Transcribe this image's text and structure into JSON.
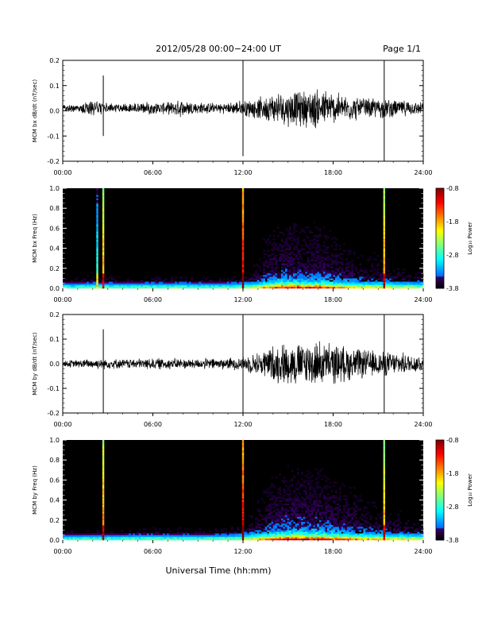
{
  "header": {
    "title": "2012/05/28  00:00−24:00 UT",
    "page": "Page 1/1"
  },
  "x_axis_title": "Universal Time (hh:mm)",
  "x_ticks": [
    "00:00",
    "06:00",
    "12:00",
    "18:00",
    "24:00"
  ],
  "colorbar": {
    "label": "Log₁₀ Power",
    "ticks": [
      "-0.8",
      "-1.8",
      "-2.8",
      "-3.8"
    ],
    "range": [
      -3.8,
      -0.8
    ]
  },
  "chart_data": [
    {
      "type": "line",
      "ylabel": "MCM bx dB/dt (nT/sec)",
      "xlim": [
        0,
        24
      ],
      "ylim": [
        -0.2,
        0.2
      ],
      "yticks": [
        "0.2",
        "0.1",
        "0.0",
        "-0.1",
        "-0.2"
      ],
      "envelope": {
        "hours": [
          0,
          1,
          2,
          3,
          4,
          5,
          6,
          7,
          8,
          9,
          10,
          11,
          12,
          13,
          14,
          15,
          16,
          17,
          18,
          19,
          20,
          21,
          22,
          23,
          24
        ],
        "amplitude": [
          0.012,
          0.014,
          0.03,
          0.02,
          0.016,
          0.02,
          0.02,
          0.02,
          0.03,
          0.02,
          0.018,
          0.018,
          0.028,
          0.035,
          0.05,
          0.06,
          0.06,
          0.07,
          0.055,
          0.045,
          0.035,
          0.035,
          0.03,
          0.025,
          0.02
        ],
        "baseline": 0.01
      },
      "spikes": [
        {
          "hour": 2.7,
          "min": -0.1,
          "max": 0.14
        },
        {
          "hour": 12.0,
          "min": -0.18,
          "max": 0.22
        },
        {
          "hour": 21.4,
          "min": -0.2,
          "max": 0.22
        }
      ]
    },
    {
      "type": "heatmap",
      "ylabel": "MCM bx Freq (Hz)",
      "xlim": [
        0,
        24
      ],
      "ylim": [
        0,
        1.0
      ],
      "yticks": [
        "1.0",
        "0.8",
        "0.6",
        "0.4",
        "0.2",
        "0.0"
      ],
      "log_power_range": [
        -3.8,
        -0.8
      ],
      "activity": {
        "hours": [
          0,
          1,
          2,
          3,
          4,
          5,
          6,
          7,
          8,
          9,
          10,
          11,
          12,
          13,
          14,
          15,
          16,
          17,
          18,
          19,
          20,
          21,
          22,
          23,
          24
        ],
        "level": [
          0.05,
          0.05,
          0.1,
          0.08,
          0.06,
          0.08,
          0.08,
          0.08,
          0.1,
          0.08,
          0.07,
          0.08,
          0.15,
          0.3,
          0.55,
          0.65,
          0.6,
          0.6,
          0.5,
          0.4,
          0.3,
          0.3,
          0.25,
          0.2,
          0.15
        ]
      },
      "lines": [
        {
          "hour": 2.3,
          "log_power": -2.6
        },
        {
          "hour": 2.7,
          "log_power": -1.6
        },
        {
          "hour": 12.0,
          "log_power": -1.0
        },
        {
          "hour": 21.4,
          "log_power": -1.5
        }
      ]
    },
    {
      "type": "line",
      "ylabel": "MCM by dB/dt (nT/sec)",
      "xlim": [
        0,
        24
      ],
      "ylim": [
        -0.2,
        0.2
      ],
      "yticks": [
        "0.2",
        "0.1",
        "0.0",
        "-0.1",
        "-0.2"
      ],
      "envelope": {
        "hours": [
          0,
          1,
          2,
          3,
          4,
          5,
          6,
          7,
          8,
          9,
          10,
          11,
          12,
          13,
          14,
          15,
          16,
          17,
          18,
          19,
          20,
          21,
          22,
          23,
          24
        ],
        "amplitude": [
          0.012,
          0.014,
          0.018,
          0.018,
          0.016,
          0.018,
          0.02,
          0.02,
          0.018,
          0.018,
          0.02,
          0.02,
          0.025,
          0.04,
          0.065,
          0.075,
          0.075,
          0.08,
          0.07,
          0.06,
          0.05,
          0.045,
          0.04,
          0.035,
          0.03
        ],
        "baseline": 0.0
      },
      "spikes": [
        {
          "hour": 2.7,
          "min": -0.2,
          "max": 0.14
        },
        {
          "hour": 12.0,
          "min": -0.2,
          "max": 0.2
        },
        {
          "hour": 21.4,
          "min": -0.2,
          "max": 0.2
        }
      ]
    },
    {
      "type": "heatmap",
      "ylabel": "MCM by Freq (Hz)",
      "xlim": [
        0,
        24
      ],
      "ylim": [
        0,
        1.0
      ],
      "yticks": [
        "1.0",
        "0.8",
        "0.6",
        "0.4",
        "0.2",
        "0.0"
      ],
      "log_power_range": [
        -3.8,
        -0.8
      ],
      "activity": {
        "hours": [
          0,
          1,
          2,
          3,
          4,
          5,
          6,
          7,
          8,
          9,
          10,
          11,
          12,
          13,
          14,
          15,
          16,
          17,
          18,
          19,
          20,
          21,
          22,
          23,
          24
        ],
        "level": [
          0.05,
          0.05,
          0.06,
          0.06,
          0.06,
          0.1,
          0.1,
          0.08,
          0.08,
          0.08,
          0.08,
          0.1,
          0.2,
          0.35,
          0.6,
          0.7,
          0.7,
          0.7,
          0.6,
          0.5,
          0.4,
          0.35,
          0.3,
          0.25,
          0.2
        ]
      },
      "lines": [
        {
          "hour": 2.7,
          "log_power": -1.5
        },
        {
          "hour": 12.0,
          "log_power": -1.0
        },
        {
          "hour": 21.4,
          "log_power": -1.6
        }
      ]
    }
  ]
}
